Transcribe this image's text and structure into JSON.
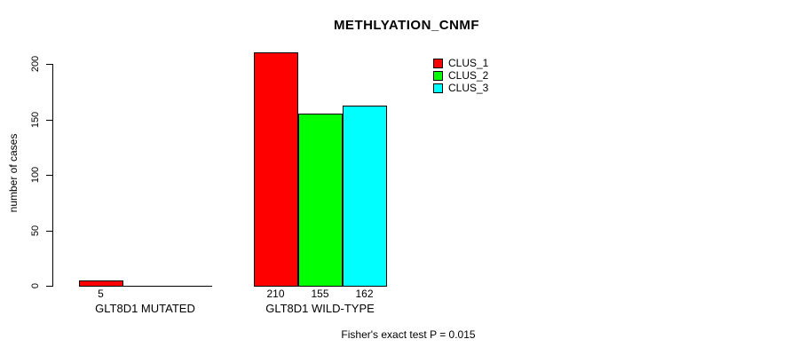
{
  "chart_data": {
    "type": "bar",
    "title": "METHLYATION_CNMF",
    "ylabel": "number of cases",
    "xlabel": "",
    "ylim": [
      0,
      200
    ],
    "yticks": [
      0,
      50,
      100,
      150,
      200
    ],
    "grid": false,
    "categories": [
      "GLT8D1 MUTATED",
      "GLT8D1 WILD-TYPE"
    ],
    "series": [
      {
        "name": "CLUS_1",
        "color": "#ff0000",
        "values": [
          5,
          210
        ]
      },
      {
        "name": "CLUS_2",
        "color": "#00ff00",
        "values": [
          0,
          155
        ]
      },
      {
        "name": "CLUS_3",
        "color": "#00ffff",
        "values": [
          0,
          162
        ]
      }
    ],
    "bar_border_color": "#000000",
    "background_color": "#ffffff",
    "legend_position": "top-right",
    "annotation": "Fisher's exact test P = 0.015"
  }
}
